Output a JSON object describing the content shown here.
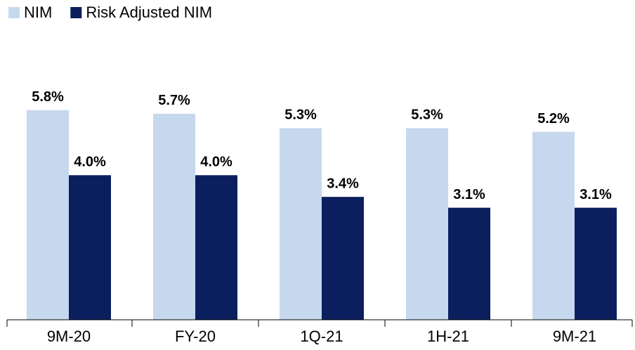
{
  "chart_data": {
    "type": "bar",
    "categories": [
      "9M-20",
      "FY-20",
      "1Q-21",
      "1H-21",
      "9M-21"
    ],
    "series": [
      {
        "name": "NIM",
        "color": "#c6d8ee",
        "values": [
          5.8,
          5.7,
          5.3,
          5.3,
          5.2
        ],
        "value_labels": [
          "5.8%",
          "5.7%",
          "5.3%",
          "5.3%",
          "5.2%"
        ]
      },
      {
        "name": "Risk Adjusted NIM",
        "color": "#0b1f5e",
        "values": [
          4.0,
          4.0,
          3.4,
          3.1,
          3.1
        ],
        "value_labels": [
          "4.0%",
          "4.0%",
          "3.4%",
          "3.1%",
          "3.1%"
        ]
      }
    ],
    "ylim": [
      0,
      7
    ],
    "legend": "top-left"
  }
}
